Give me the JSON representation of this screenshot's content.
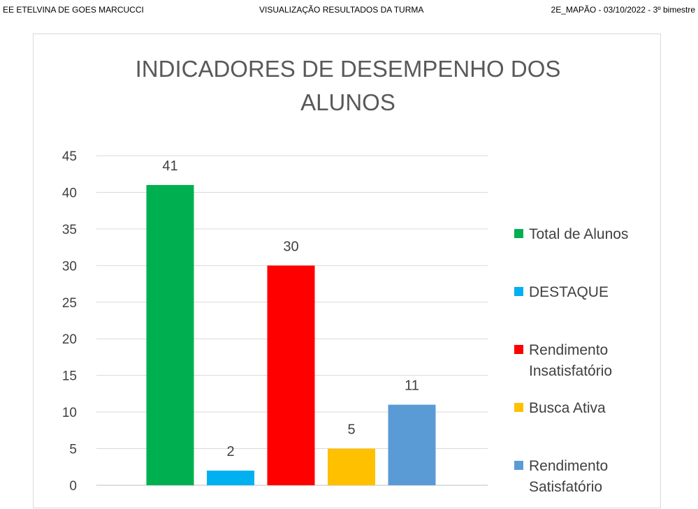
{
  "header": {
    "school": "EE ETELVINA DE GOES MARCUCCI",
    "view": "VISUALIZAÇÃO  RESULTADOS DA TURMA",
    "info": "2E_MAPÃO - 03/10/2022 - 3º bimestre"
  },
  "chart_data": {
    "type": "bar",
    "title": [
      "INDICADORES DE DESEMPENHO DOS",
      "ALUNOS"
    ],
    "xlabel": "",
    "ylabel": "",
    "ylim": [
      0,
      45
    ],
    "yticks": [
      0,
      5,
      10,
      15,
      20,
      25,
      30,
      35,
      40,
      45
    ],
    "grid": true,
    "legend_position": "right",
    "series": [
      {
        "name": [
          "Total de Alunos"
        ],
        "value": 41,
        "color": "#00b050"
      },
      {
        "name": [
          "DESTAQUE"
        ],
        "value": 2,
        "color": "#00b0f0"
      },
      {
        "name": [
          "Rendimento",
          "Insatisfatório"
        ],
        "value": 30,
        "color": "#ff0000"
      },
      {
        "name": [
          "Busca Ativa"
        ],
        "value": 5,
        "color": "#ffc000"
      },
      {
        "name": [
          "Rendimento",
          "Satisfatório"
        ],
        "value": 11,
        "color": "#5b9bd5"
      }
    ]
  }
}
